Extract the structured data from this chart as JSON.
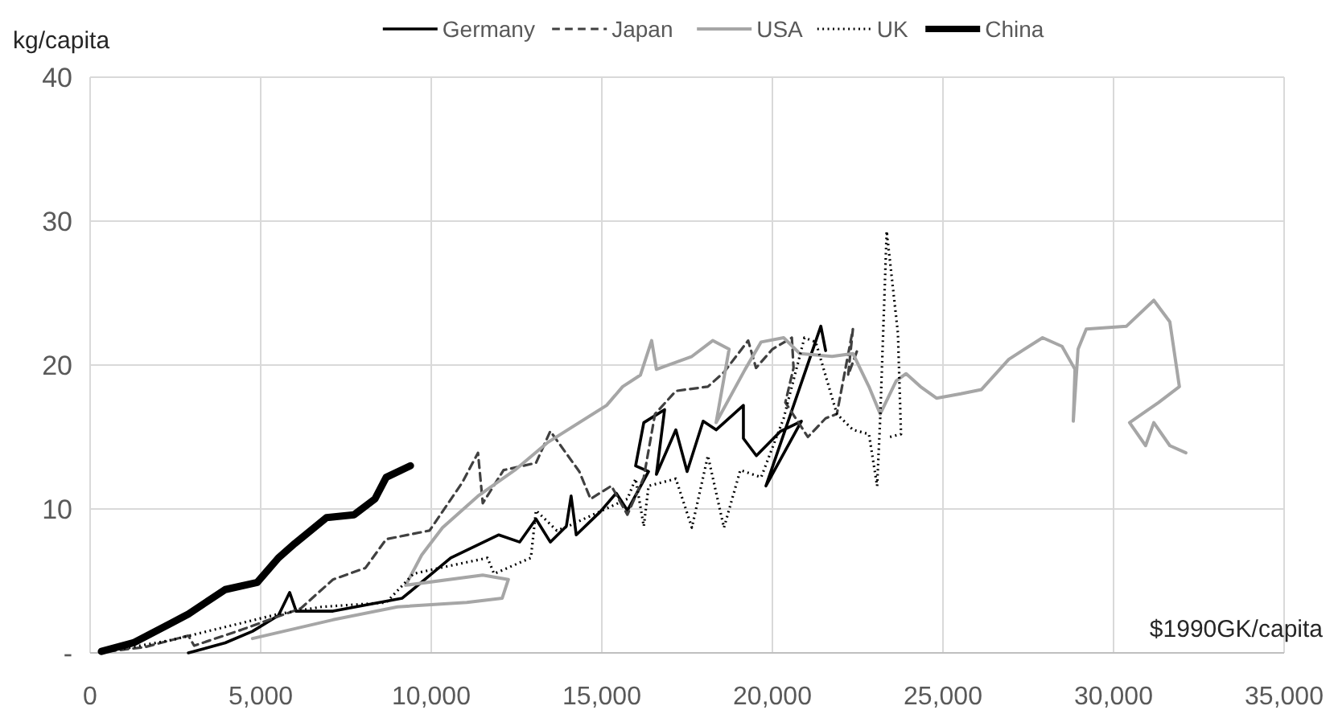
{
  "chart_data": {
    "type": "line",
    "xlabel": "$1990GK/capita",
    "ylabel": "kg/capita",
    "xlim": [
      0,
      35000
    ],
    "xticks": [
      {
        "value": 0,
        "label": "0"
      },
      {
        "value": 5000,
        "label": "5,000"
      },
      {
        "value": 10000,
        "label": "10,000"
      },
      {
        "value": 15000,
        "label": "15,000"
      },
      {
        "value": 20000,
        "label": "20,000"
      },
      {
        "value": 25000,
        "label": "25,000"
      },
      {
        "value": 30000,
        "label": "30,000"
      },
      {
        "value": 35000,
        "label": "35,000"
      }
    ],
    "ylim": [
      0,
      40
    ],
    "yticks": [
      {
        "value": 0,
        "label": "-"
      },
      10,
      20,
      30,
      40
    ],
    "grid": true,
    "legend": "top",
    "marker": "none",
    "series": [
      {
        "name": "Germany",
        "color": "#000000",
        "line_style": "solid",
        "x": [
          2880,
          3960,
          4760,
          5520,
          5850,
          6040,
          7120,
          9150,
          10570,
          11980,
          12590,
          13070,
          13490,
          13960,
          14100,
          14250,
          14950,
          15420,
          15750,
          16370,
          15990,
          16230,
          16840,
          16600,
          17170,
          17500,
          17970,
          18350,
          19150,
          19150,
          19530,
          20240,
          20850,
          19810,
          21420,
          21560
        ],
        "values": [
          0,
          0.7,
          1.5,
          2.6,
          4.2,
          2.9,
          2.9,
          3.8,
          6.6,
          8.2,
          7.7,
          9.3,
          7.7,
          8.8,
          10.9,
          8.2,
          9.8,
          11.1,
          9.9,
          12.6,
          13.0,
          16.0,
          16.9,
          12.4,
          15.5,
          12.6,
          16.1,
          15.5,
          17.2,
          14.9,
          13.7,
          15.4,
          16.1,
          11.6,
          22.7,
          21.0
        ]
      },
      {
        "name": "Japan",
        "color": "#404040",
        "line_style": "dashed",
        "x": [
          520,
          1600,
          2880,
          3050,
          4430,
          6180,
          7120,
          8070,
          8680,
          9950,
          10900,
          11370,
          11510,
          12120,
          13070,
          13490,
          14340,
          14670,
          15280,
          15750,
          16230,
          16560,
          17170,
          18110,
          18580,
          19290,
          19520,
          20000,
          20570,
          20620,
          20380,
          21040,
          21560,
          21890,
          22360,
          22220,
          22500
        ],
        "values": [
          0.1,
          0.4,
          1.2,
          0.5,
          1.6,
          3.1,
          5.1,
          5.9,
          7.9,
          8.5,
          11.8,
          13.9,
          10.4,
          12.7,
          13.2,
          15.4,
          12.6,
          10.7,
          11.6,
          9.6,
          12.2,
          16.6,
          18.2,
          18.5,
          19.5,
          21.7,
          19.8,
          21.1,
          21.9,
          19.8,
          17.4,
          15.0,
          16.3,
          16.6,
          22.5,
          19.3,
          21.1
        ]
      },
      {
        "name": "USA",
        "color": "#a6a6a6",
        "line_style": "solid",
        "x": [
          4760,
          7120,
          9010,
          11040,
          12080,
          12260,
          11510,
          9250,
          9720,
          10330,
          11370,
          12450,
          13400,
          15140,
          15610,
          16130,
          16460,
          16600,
          17640,
          18250,
          18730,
          18350,
          19200,
          19670,
          20330,
          20800,
          21750,
          22360,
          22830,
          23160,
          23630,
          23920,
          24340,
          24810,
          25520,
          26130,
          26930,
          27920,
          28490,
          28870,
          28820,
          28960,
          29200,
          30380,
          31180,
          31650,
          31930,
          31320,
          30470,
          30940,
          31180,
          31650,
          32120
        ],
        "values": [
          1.0,
          2.3,
          3.2,
          3.5,
          3.8,
          5.1,
          5.4,
          4.7,
          6.8,
          8.7,
          10.9,
          12.7,
          14.6,
          17.2,
          18.5,
          19.3,
          21.7,
          19.7,
          20.6,
          21.7,
          21.1,
          16.0,
          19.7,
          21.6,
          21.9,
          20.8,
          20.6,
          20.8,
          18.5,
          16.6,
          18.9,
          19.4,
          18.5,
          17.7,
          18.0,
          18.3,
          20.4,
          21.9,
          21.3,
          19.7,
          16.1,
          21.1,
          22.5,
          22.7,
          24.5,
          23.0,
          18.5,
          17.4,
          16.0,
          14.4,
          16.0,
          14.4,
          13.9
        ]
      },
      {
        "name": "UK",
        "color": "#000000",
        "line_style": "dotted",
        "x": [
          990,
          2400,
          3960,
          5520,
          6790,
          8680,
          9480,
          10240,
          11650,
          11840,
          12920,
          13070,
          13680,
          14010,
          15750,
          15990,
          16230,
          16370,
          17170,
          17640,
          18110,
          18580,
          19060,
          19670,
          20330,
          20940,
          21270,
          21890,
          22360,
          22830,
          23070,
          23160,
          23350,
          23680,
          23770,
          23440
        ],
        "values": [
          0.3,
          0.9,
          1.8,
          2.7,
          3.2,
          3.5,
          5.5,
          5.9,
          6.6,
          5.5,
          6.6,
          9.9,
          8.5,
          8.8,
          10.7,
          12.1,
          8.8,
          11.6,
          12.1,
          8.7,
          13.7,
          8.7,
          12.7,
          12.2,
          16.3,
          21.9,
          21.6,
          16.6,
          15.5,
          15.2,
          11.6,
          16.3,
          29.3,
          22.2,
          15.2,
          15.0
        ]
      },
      {
        "name": "China",
        "color": "#000000",
        "line_style": "solid",
        "x": [
          330,
          1270,
          2400,
          2880,
          3960,
          4900,
          5520,
          6000,
          6930,
          7740,
          8350,
          8680,
          9390
        ],
        "values": [
          0.1,
          0.7,
          2.1,
          2.7,
          4.4,
          4.9,
          6.6,
          7.6,
          9.4,
          9.6,
          10.7,
          12.2,
          13.0
        ]
      }
    ]
  }
}
